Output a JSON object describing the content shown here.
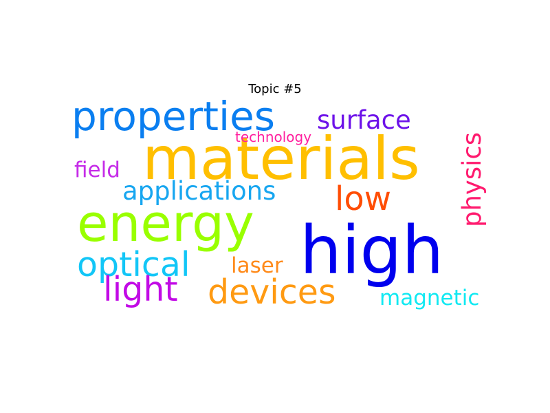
{
  "title": "Topic #5",
  "words": [
    {
      "text": "materials",
      "color": "#ffbf00"
    },
    {
      "text": "high",
      "color": "#0000ee"
    },
    {
      "text": "energy",
      "color": "#99ff00"
    },
    {
      "text": "properties",
      "color": "#0a7ef0"
    },
    {
      "text": "devices",
      "color": "#ff9a12"
    },
    {
      "text": "optical",
      "color": "#12c6f7"
    },
    {
      "text": "light",
      "color": "#c20ae6"
    },
    {
      "text": "applications",
      "color": "#17a6f0"
    },
    {
      "text": "low",
      "color": "#ff4d05"
    },
    {
      "text": "surface",
      "color": "#6d12e9"
    },
    {
      "text": "physics",
      "color": "#ff1a6e"
    },
    {
      "text": "field",
      "color": "#c52be8"
    },
    {
      "text": "laser",
      "color": "#ff8a1a"
    },
    {
      "text": "magnetic",
      "color": "#11e9f2"
    },
    {
      "text": "technology",
      "color": "#ff1f9e"
    }
  ]
}
